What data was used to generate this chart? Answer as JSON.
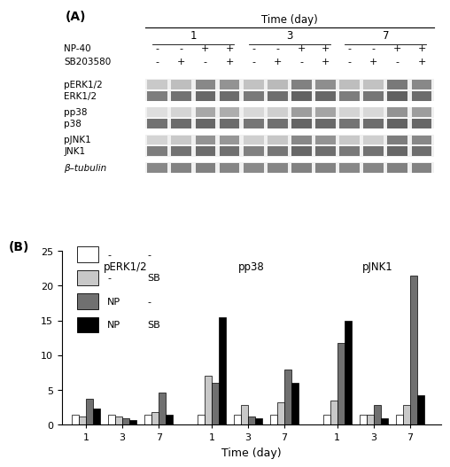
{
  "ylim": [
    0,
    25
  ],
  "yticks": [
    0,
    5,
    10,
    15,
    20,
    25
  ],
  "xlabel": "Time (day)",
  "group_labels": [
    "pERK1/2",
    "pp38",
    "pJNK1"
  ],
  "time_labels": [
    "1",
    "3",
    "7",
    "1",
    "3",
    "7",
    "1",
    "3",
    "7"
  ],
  "bar_colors": [
    "white",
    "#c8c8c8",
    "#707070",
    "black"
  ],
  "bar_edge_colors": [
    "black",
    "black",
    "black",
    "black"
  ],
  "data": {
    "pERK1_2": {
      "day1": [
        1.5,
        1.2,
        3.8,
        2.3
      ],
      "day3": [
        1.5,
        1.2,
        1.0,
        0.7
      ],
      "day7": [
        1.5,
        1.8,
        4.7,
        1.5
      ]
    },
    "pp38": {
      "day1": [
        1.5,
        7.0,
        6.0,
        15.5
      ],
      "day3": [
        1.5,
        2.8,
        1.2,
        1.0
      ],
      "day7": [
        1.5,
        3.2,
        8.0,
        6.0
      ]
    },
    "pJNK1": {
      "day1": [
        1.5,
        3.5,
        11.8,
        15.0
      ],
      "day3": [
        1.5,
        1.5,
        2.8,
        1.0
      ],
      "day7": [
        1.5,
        2.8,
        21.5,
        4.2
      ]
    }
  },
  "wb_row_labels": [
    "NP-40",
    "SB203580",
    "pERK1/2",
    "ERK1/2",
    "pp38",
    "p38",
    "pJNK1",
    "JNK1",
    "β-tubulin"
  ],
  "pm_NP40": [
    "-",
    "-",
    "+",
    "+",
    "-",
    "-",
    "+",
    "+",
    "-",
    "-",
    "+",
    "+"
  ],
  "pm_SB": [
    "-",
    "+",
    "-",
    "+",
    "-",
    "+",
    "-",
    "+",
    "-",
    "+",
    "-",
    "+"
  ],
  "wb_bands": {
    "pERK1_2_p": [
      0.25,
      0.3,
      0.55,
      0.5,
      0.28,
      0.32,
      0.58,
      0.52,
      0.3,
      0.28,
      0.62,
      0.55
    ],
    "ERK1_2": [
      0.6,
      0.65,
      0.7,
      0.68,
      0.62,
      0.67,
      0.72,
      0.7,
      0.6,
      0.63,
      0.73,
      0.68
    ],
    "pp38_p": [
      0.15,
      0.2,
      0.4,
      0.38,
      0.18,
      0.22,
      0.45,
      0.42,
      0.2,
      0.18,
      0.5,
      0.45
    ],
    "p38": [
      0.65,
      0.68,
      0.7,
      0.68,
      0.63,
      0.66,
      0.71,
      0.69,
      0.64,
      0.67,
      0.72,
      0.7
    ],
    "pJNK1_p": [
      0.2,
      0.25,
      0.5,
      0.48,
      0.22,
      0.26,
      0.55,
      0.5,
      0.25,
      0.22,
      0.6,
      0.55
    ],
    "JNK1": [
      0.6,
      0.65,
      0.68,
      0.66,
      0.58,
      0.63,
      0.7,
      0.67,
      0.62,
      0.65,
      0.7,
      0.67
    ],
    "beta_tub": [
      0.55,
      0.57,
      0.58,
      0.56,
      0.54,
      0.56,
      0.58,
      0.57,
      0.55,
      0.56,
      0.58,
      0.57
    ]
  },
  "figure_width": 4.46,
  "figure_height": 5.0
}
